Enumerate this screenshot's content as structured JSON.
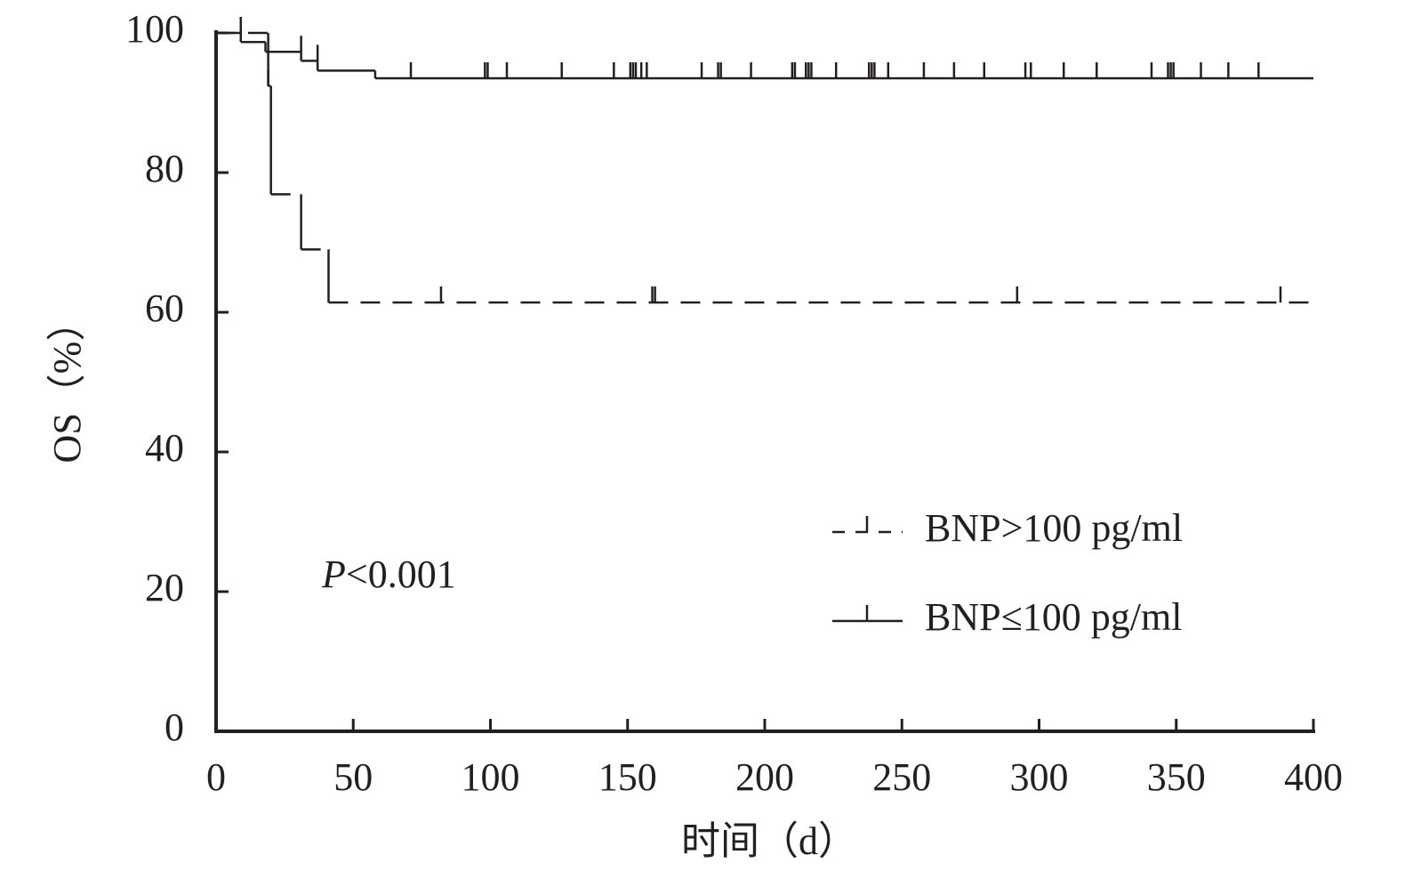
{
  "chart_data": {
    "type": "km",
    "x_label": "时间（d）",
    "y_label": "OS（%）",
    "annotation": {
      "italic": "P",
      "text": "<0.001"
    },
    "xlim": [
      0,
      400
    ],
    "xticks": [
      0,
      50,
      100,
      150,
      200,
      250,
      300,
      350,
      400
    ],
    "ylim": [
      0,
      100
    ],
    "yticks": [
      0,
      20,
      40,
      60,
      80,
      100
    ],
    "color": "#231f20",
    "series": [
      {
        "name": "BNP>100 pg/ml",
        "dash": true,
        "x": [
          0,
          19,
          20,
          31,
          41,
          400
        ],
        "values": [
          100,
          92.4,
          76.9,
          69,
          61.4,
          61.4
        ],
        "censor_x": [
          19,
          82,
          159,
          160,
          292,
          388
        ],
        "censor_values": [
          92.4,
          61.4,
          61.4,
          61.4,
          61.4,
          61.4
        ]
      },
      {
        "name": "BNP≤100 pg/ml",
        "dash": false,
        "x": [
          0,
          9,
          18,
          31,
          37,
          58,
          400
        ],
        "values": [
          100,
          98.7,
          97.3,
          96,
          94.6,
          93.5,
          93.5
        ],
        "censor_x": [
          9,
          31,
          37,
          71,
          98,
          99,
          106,
          126,
          145,
          151,
          152,
          153,
          155,
          157,
          177,
          183,
          184,
          195,
          210,
          211,
          215,
          216,
          217,
          226,
          238,
          239,
          240,
          245,
          258,
          269,
          280,
          295,
          297,
          309,
          321,
          341,
          347,
          348,
          349,
          359,
          369,
          380
        ],
        "censor_values": [
          100,
          97.3,
          96,
          93.5,
          93.5,
          93.5,
          93.5,
          93.5,
          93.5,
          93.5,
          93.5,
          93.5,
          93.5,
          93.5,
          93.5,
          93.5,
          93.5,
          93.5,
          93.5,
          93.5,
          93.5,
          93.5,
          93.5,
          93.5,
          93.5,
          93.5,
          93.5,
          93.5,
          93.5,
          93.5,
          93.5,
          93.5,
          93.5,
          93.5,
          93.5,
          93.5,
          93.5,
          93.5,
          93.5,
          93.5,
          93.5,
          93.5
        ]
      }
    ]
  }
}
